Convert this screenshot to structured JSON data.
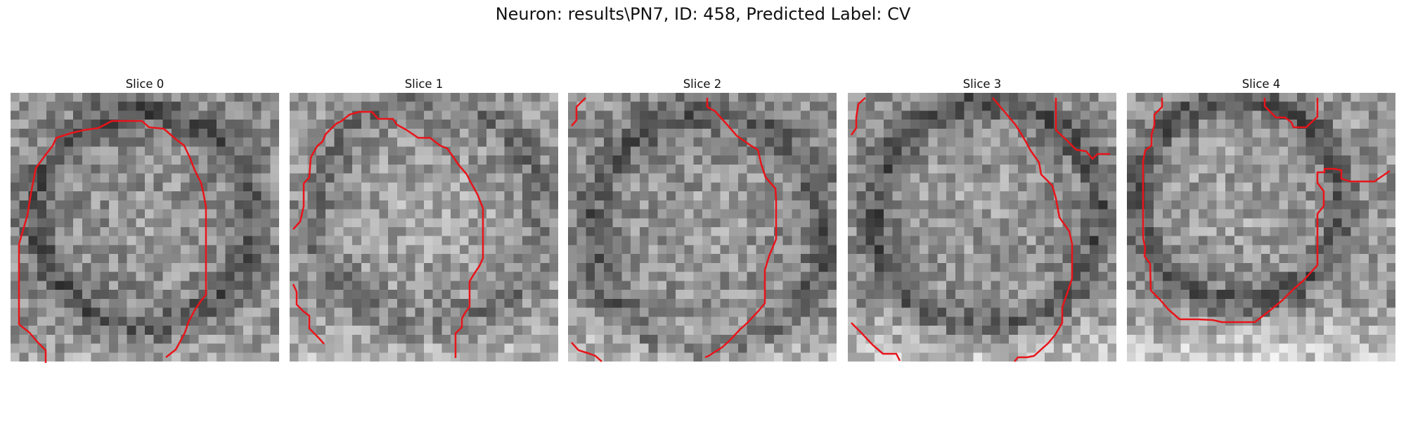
{
  "figure": {
    "title": "Neuron: results\\PN7, ID: 458, Predicted Label: CV"
  },
  "slices": [
    {
      "title": "Slice 0"
    },
    {
      "title": "Slice 1"
    },
    {
      "title": "Slice 2"
    },
    {
      "title": "Slice 3"
    },
    {
      "title": "Slice 4"
    }
  ],
  "colors": {
    "contour": "#e8141a",
    "colormap": "gray"
  }
}
